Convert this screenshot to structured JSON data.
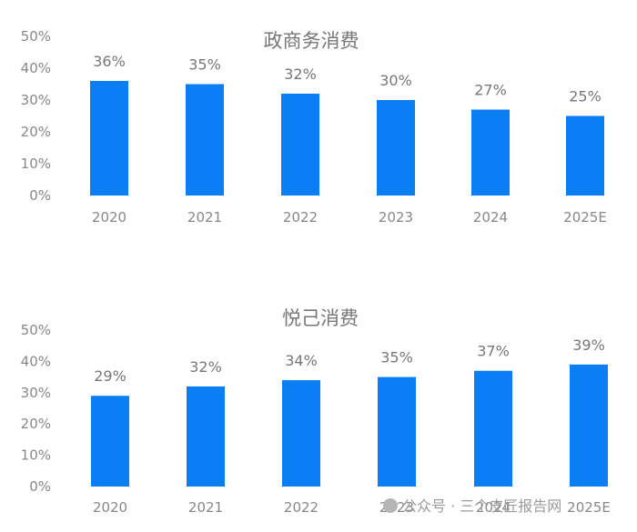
{
  "chart_data": [
    {
      "type": "bar",
      "title": "政商务消费",
      "categories": [
        "2020",
        "2021",
        "2022",
        "2023",
        "2024",
        "2025E"
      ],
      "values": [
        36,
        35,
        32,
        30,
        27,
        25
      ],
      "value_labels": [
        "36%",
        "35%",
        "32%",
        "30%",
        "27%",
        "25%"
      ],
      "yticks": [
        "0%",
        "10%",
        "20%",
        "30%",
        "40%",
        "50%"
      ],
      "ylim": [
        0,
        50
      ],
      "grid": false,
      "bar_color": "#0A7EF5"
    },
    {
      "type": "bar",
      "title": "悦己消费",
      "categories": [
        "2020",
        "2021",
        "2022",
        "2023",
        "2024",
        "2025E"
      ],
      "values": [
        29,
        32,
        34,
        35,
        37,
        39
      ],
      "value_labels": [
        "29%",
        "32%",
        "34%",
        "35%",
        "37%",
        "39%"
      ],
      "yticks": [
        "0%",
        "10%",
        "20%",
        "30%",
        "40%",
        "50%"
      ],
      "ylim": [
        0,
        50
      ],
      "grid": false,
      "bar_color": "#0A7EF5"
    }
  ],
  "watermark": {
    "text": "公众号 · 三个皮匠报告网"
  }
}
